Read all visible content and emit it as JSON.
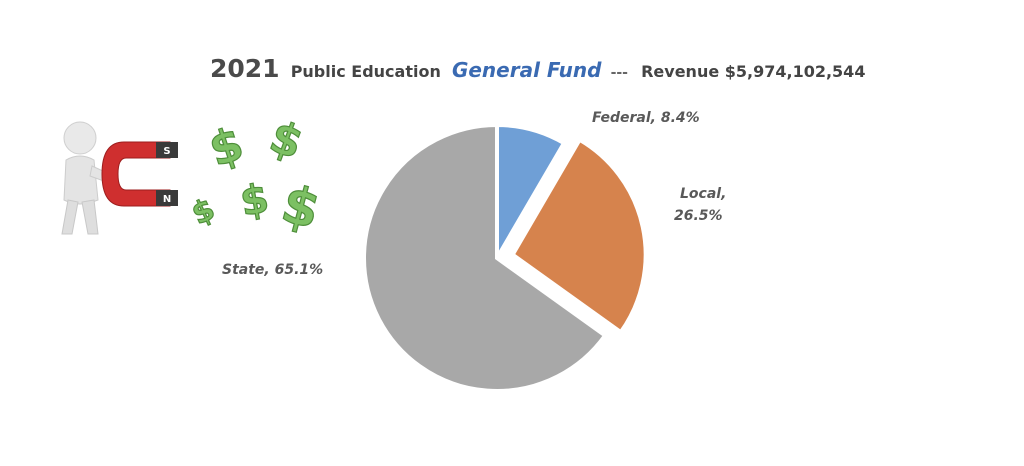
{
  "title": {
    "year": "2021",
    "prefix": "Public Education",
    "fund": "General Fund",
    "separator": "---",
    "revenue": "Revenue $5,974,102,544"
  },
  "icons": {
    "person": "person-with-magnet-icon",
    "magnet": "magnet-icon",
    "magnet_pole_s": "S",
    "magnet_pole_n": "N",
    "money": "dollar-sign-icon"
  },
  "colors": {
    "federal": "#6f9fd6",
    "local": "#d6834d",
    "state": "#a8a8a8",
    "fund_title": "#3a6ab2",
    "dollar": "#7cc063"
  },
  "chart_data": {
    "type": "pie",
    "start_angle_deg": 0,
    "slices": [
      {
        "label": "Federal",
        "value": 8.4,
        "text": "Federal, 8.4%",
        "color": "#6f9fd6",
        "exploded": false
      },
      {
        "label": "Local",
        "value": 26.5,
        "text_line1": "Local,",
        "text_line2": "26.5%",
        "color": "#d6834d",
        "exploded": true
      },
      {
        "label": "State",
        "value": 65.1,
        "text": "State, 65.1%",
        "color": "#a8a8a8",
        "exploded": false
      }
    ]
  }
}
